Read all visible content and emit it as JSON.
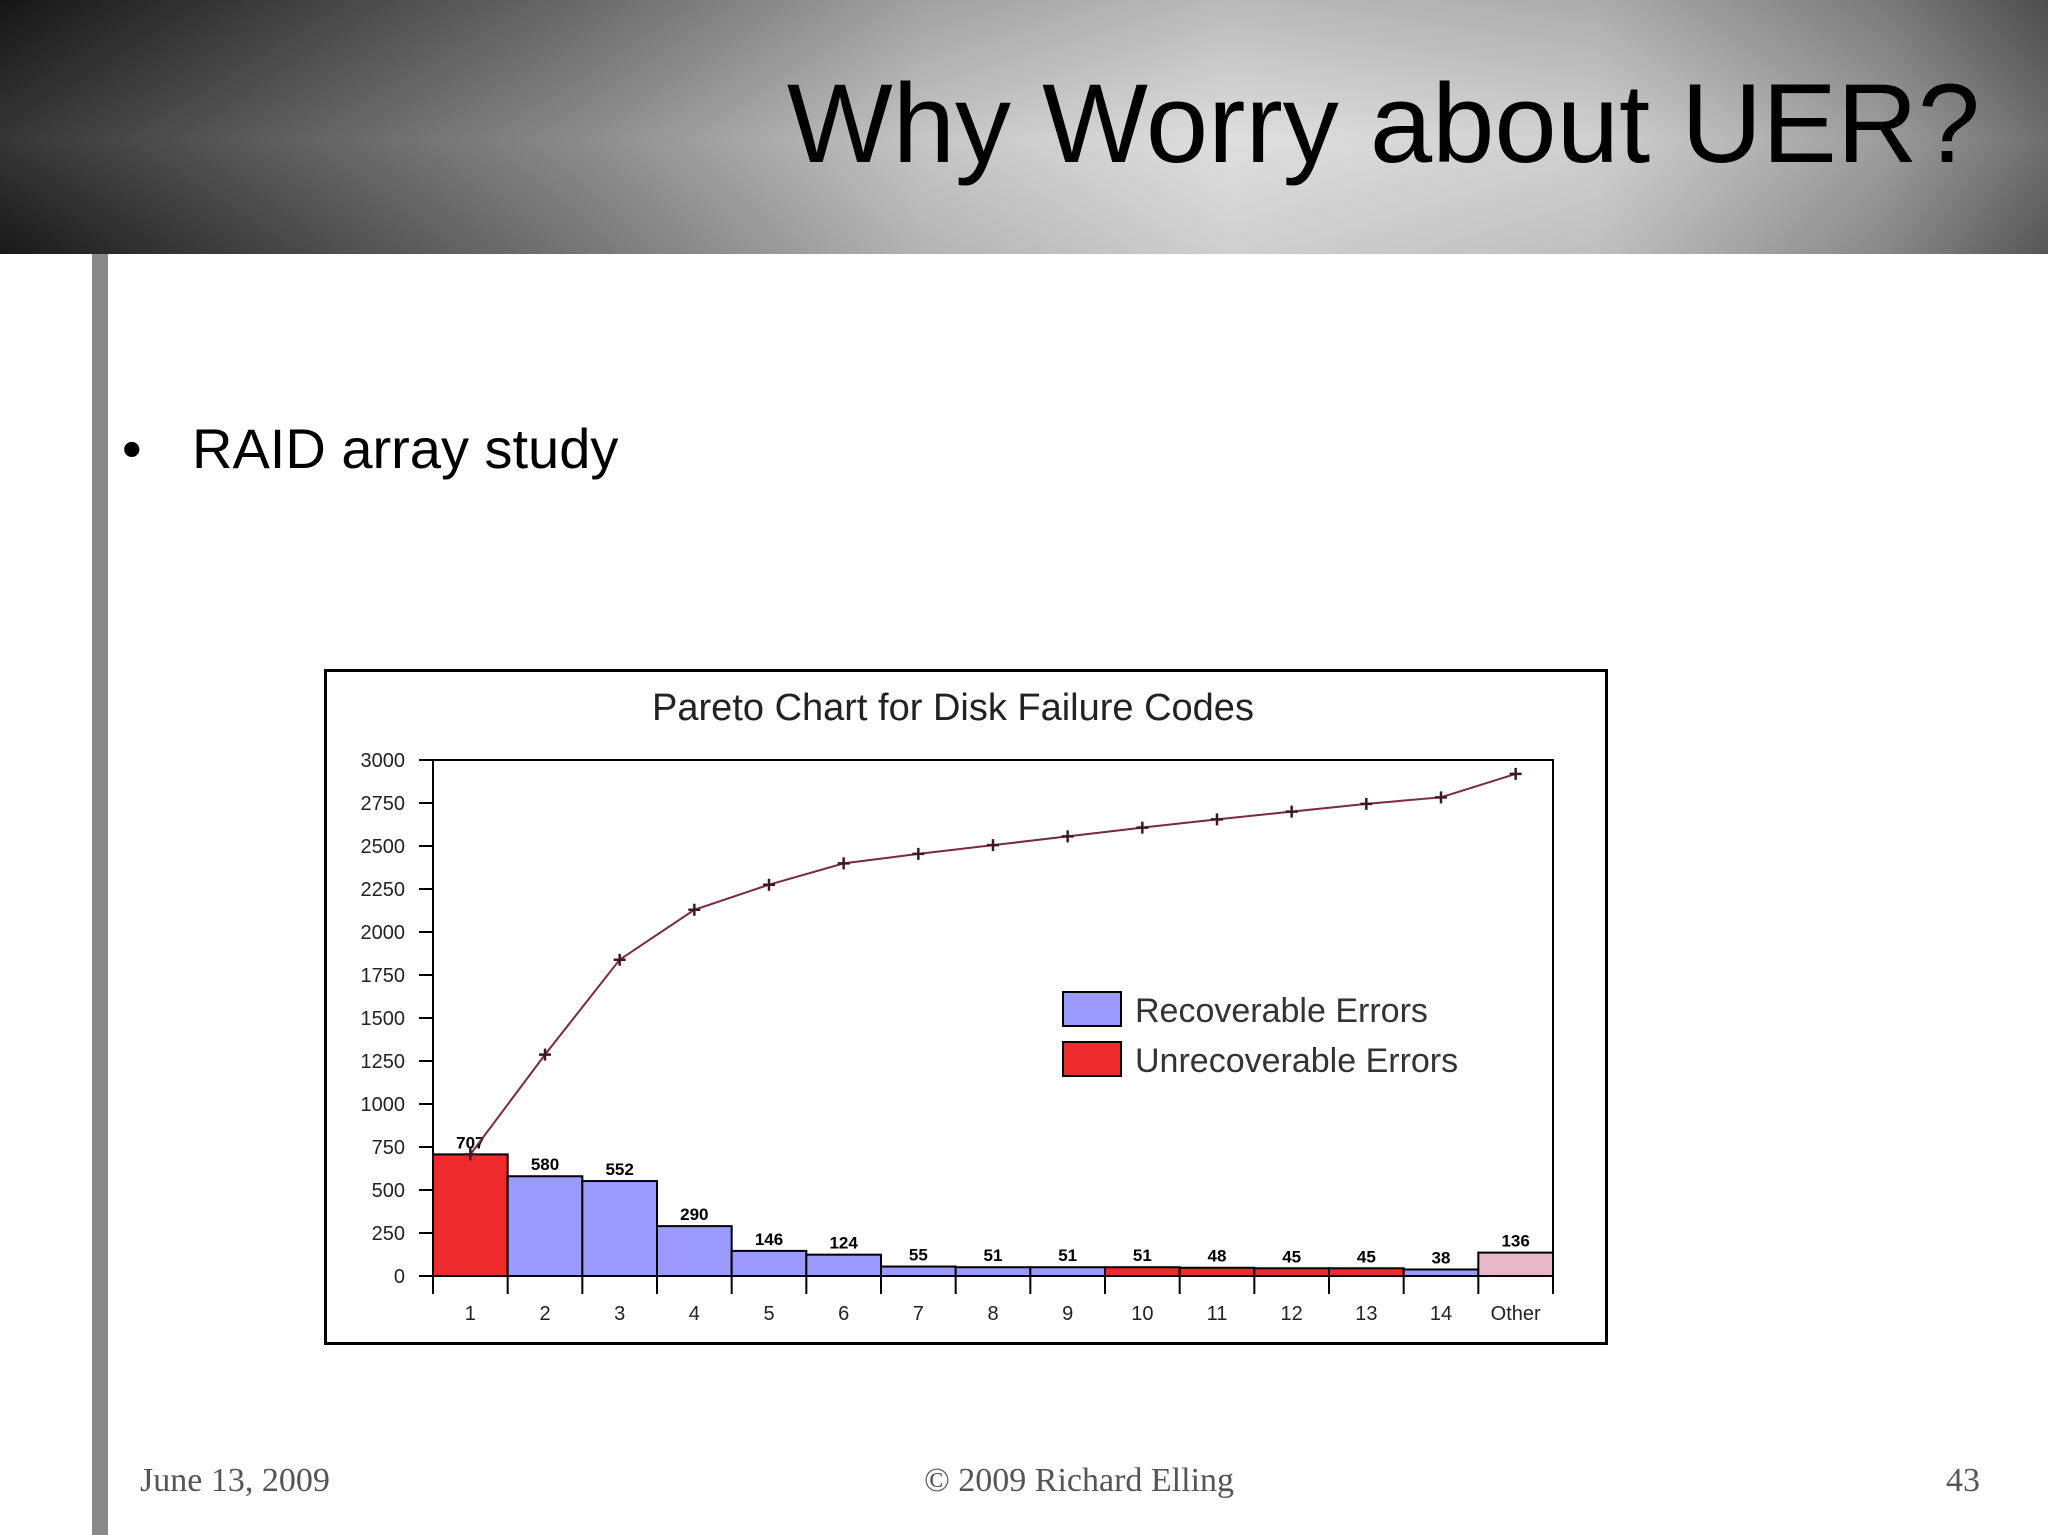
{
  "slide": {
    "title": "Why Worry about UER?",
    "bullets": [
      {
        "marker": "•",
        "text": "RAID array study"
      }
    ],
    "footer": {
      "date": "June 13, 2009",
      "copyright": "© 2009 Richard Elling",
      "page": "43"
    }
  },
  "colors": {
    "recoverable": "#9a9aff",
    "unrecoverable": "#ee2a2a",
    "other": "#e8b8c8",
    "cumulative_line": "#7a2a3a"
  },
  "chart_data": {
    "type": "bar",
    "title": "Pareto Chart for Disk Failure Codes",
    "xlabel": "",
    "ylabel": "",
    "ylim": [
      0,
      3000
    ],
    "yticks": [
      "0",
      "250",
      "500",
      "750",
      "1000",
      "1250",
      "1500",
      "1750",
      "2000",
      "2250",
      "2500",
      "2750",
      "3000"
    ],
    "categories": [
      "1",
      "2",
      "3",
      "4",
      "5",
      "6",
      "7",
      "8",
      "9",
      "10",
      "11",
      "12",
      "13",
      "14",
      "Other"
    ],
    "values": [
      707,
      580,
      552,
      290,
      146,
      124,
      55,
      51,
      51,
      51,
      48,
      45,
      45,
      38,
      136
    ],
    "value_labels": [
      "707",
      "580",
      "552",
      "290",
      "146",
      "124",
      "55",
      "51",
      "51",
      "51",
      "48",
      "45",
      "45",
      "38",
      "136"
    ],
    "error_type": [
      "unrecoverable",
      "recoverable",
      "recoverable",
      "recoverable",
      "recoverable",
      "recoverable",
      "recoverable",
      "recoverable",
      "recoverable",
      "unrecoverable",
      "unrecoverable",
      "unrecoverable",
      "unrecoverable",
      "recoverable",
      "other"
    ],
    "series": [
      {
        "name": "Recoverable Errors"
      },
      {
        "name": "Unrecoverable Errors"
      }
    ],
    "cumulative": [
      707,
      1287,
      1839,
      2129,
      2275,
      2399,
      2454,
      2505,
      2556,
      2607,
      2655,
      2700,
      2745,
      2783,
      2919
    ],
    "legend_position": "right",
    "grid": false
  }
}
